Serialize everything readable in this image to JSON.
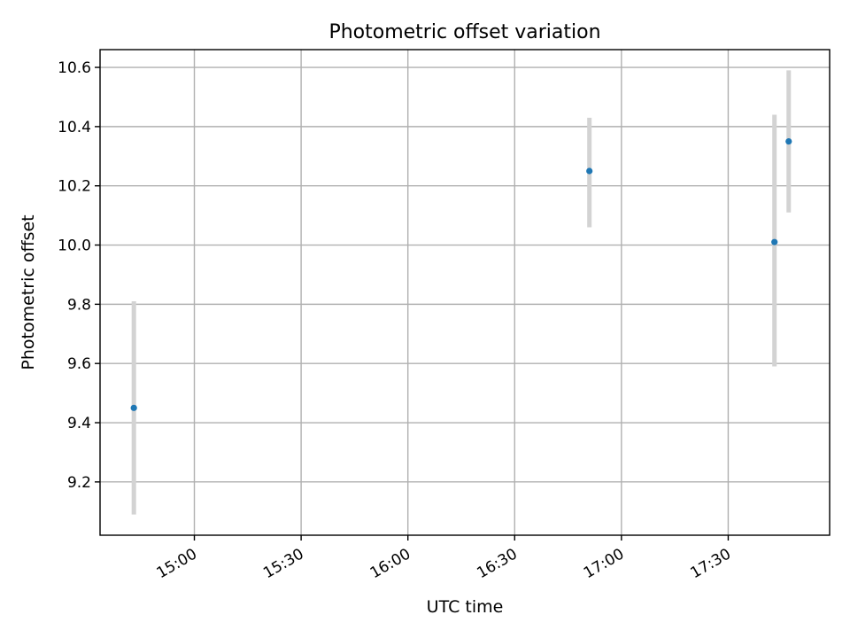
{
  "chart_data": {
    "type": "scatter",
    "title": "Photometric offset variation",
    "xlabel": "UTC time",
    "ylabel": "Photometric offset",
    "x_ticks": [
      "15:00",
      "15:30",
      "16:00",
      "16:30",
      "17:00",
      "17:30"
    ],
    "y_ticks": [
      "9.2",
      "9.4",
      "9.6",
      "9.8",
      "10.0",
      "10.2",
      "10.4",
      "10.6"
    ],
    "xlim": [
      "14:33:30",
      "17:58:30"
    ],
    "ylim": [
      9.02,
      10.66
    ],
    "grid": true,
    "legend": "none",
    "error_bar_color": "#d3d3d3",
    "point_color": "#1f77b4",
    "points": [
      {
        "x": "14:43",
        "y": 9.45,
        "yerr_low": 9.09,
        "yerr_high": 9.81
      },
      {
        "x": "16:51",
        "y": 10.25,
        "yerr_low": 10.06,
        "yerr_high": 10.43
      },
      {
        "x": "17:43",
        "y": 10.01,
        "yerr_low": 9.59,
        "yerr_high": 10.44
      },
      {
        "x": "17:47",
        "y": 10.35,
        "yerr_low": 10.11,
        "yerr_high": 10.59
      }
    ]
  }
}
